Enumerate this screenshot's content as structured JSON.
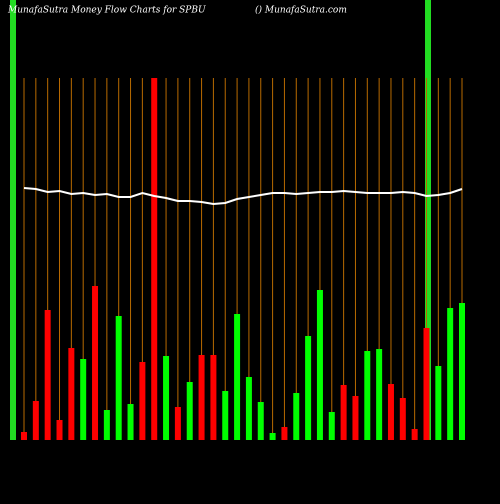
{
  "chart_data": {
    "type": "bar",
    "title": "MunafaSutra  Money Flow  Charts for SPBU",
    "subtitle": "() MunafaSutra.com",
    "values": [
      8,
      39,
      130,
      20,
      92,
      81,
      154,
      30,
      124,
      36,
      78,
      362,
      84,
      33,
      58,
      85,
      85,
      49,
      126,
      63,
      38,
      7,
      13,
      47,
      104,
      150,
      28,
      55,
      44,
      89,
      91,
      56,
      42,
      11,
      112,
      74,
      132,
      137
    ],
    "colors": [
      "#ff0000",
      "#ff0000",
      "#ff0000",
      "#ff0000",
      "#ff0000",
      "#00ff00",
      "#ff0000",
      "#00ff00",
      "#00ff00",
      "#00ff00",
      "#ff0000",
      "#ff0000",
      "#00ff00",
      "#ff0000",
      "#00ff00",
      "#ff0000",
      "#ff0000",
      "#00ff00",
      "#00ff00",
      "#00ff00",
      "#00ff00",
      "#00ff00",
      "#ff0000",
      "#00ff00",
      "#00ff00",
      "#00ff00",
      "#00ff00",
      "#ff0000",
      "#ff0000",
      "#00ff00",
      "#00ff00",
      "#ff0000",
      "#ff0000",
      "#ff0000",
      "#ff0000",
      "#00ff00",
      "#00ff00",
      "#00ff00"
    ],
    "line": [
      252,
      251,
      248,
      249,
      246,
      247,
      245,
      246,
      243,
      243,
      247,
      244,
      242,
      239,
      239,
      238,
      236,
      237,
      241,
      243,
      245,
      247,
      247,
      246,
      247,
      248,
      248,
      249,
      248,
      247,
      247,
      247,
      248,
      247,
      244,
      245,
      247,
      251
    ],
    "line_color": "#ffffff",
    "ylim": [
      0,
      362
    ]
  }
}
